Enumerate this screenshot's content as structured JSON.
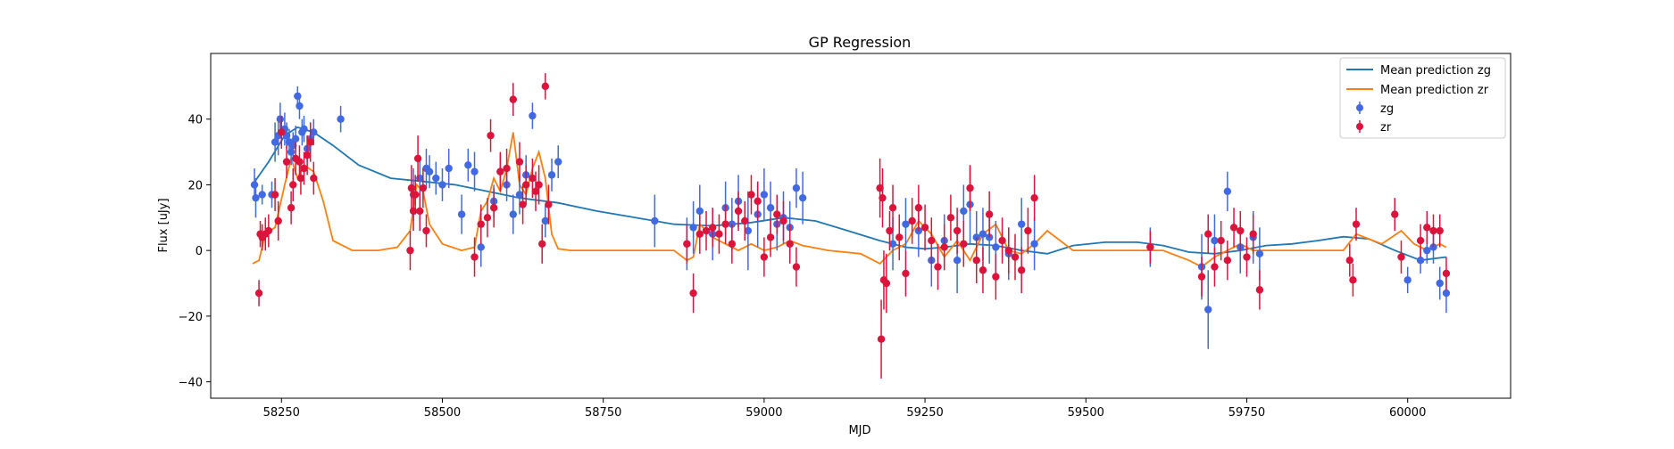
{
  "colors": {
    "zg_line": "#1f77b4",
    "zr_line": "#ff7f0e",
    "zg_points": "#4169e1",
    "zr_points": "#dc143c",
    "axes": "#000000"
  },
  "chart_data": {
    "type": "scatter",
    "title": "GP Regression",
    "xlabel": "MJD",
    "ylabel": "Flux [uJy]",
    "xlim": [
      58140,
      60160
    ],
    "ylim": [
      -45,
      60
    ],
    "x_ticks": [
      58250,
      58500,
      58750,
      59000,
      59250,
      59500,
      59750,
      60000
    ],
    "y_ticks": [
      -40,
      -20,
      0,
      20,
      40
    ],
    "grid": false,
    "legend_position": "top-right",
    "legend": [
      "Mean prediction zg",
      "Mean prediction zr",
      "zg",
      "zr"
    ],
    "series": [
      {
        "name": "Mean prediction zg",
        "kind": "line",
        "x": [
          58205,
          58230,
          58255,
          58275,
          58300,
          58330,
          58370,
          58420,
          58470,
          58520,
          58570,
          58620,
          58680,
          58740,
          58800,
          58860,
          58920,
          58980,
          59030,
          59080,
          59130,
          59180,
          59220,
          59250,
          59280,
          59320,
          59360,
          59400,
          59440,
          59480,
          59530,
          59580,
          59620,
          59660,
          59700,
          59740,
          59780,
          59820,
          59860,
          59900,
          59940,
          59980,
          60020,
          60060
        ],
        "y": [
          20,
          27,
          35,
          37.5,
          36,
          32,
          26,
          22,
          21,
          20,
          18,
          16,
          14.5,
          12,
          10,
          8,
          7.5,
          8.5,
          10,
          9,
          6,
          3,
          1,
          0.5,
          1,
          2,
          1.5,
          0,
          -1,
          1.5,
          2.5,
          2.5,
          1.5,
          -0.5,
          -1,
          0,
          1.5,
          2,
          3,
          4.2,
          3.5,
          0,
          -3,
          -2
        ]
      },
      {
        "name": "Mean prediction zr",
        "kind": "line",
        "x": [
          58205,
          58215,
          58225,
          58240,
          58255,
          58265,
          58275,
          58285,
          58300,
          58315,
          58330,
          58360,
          58400,
          58430,
          58450,
          58460,
          58470,
          58480,
          58500,
          58530,
          58550,
          58560,
          58570,
          58580,
          58590,
          58600,
          58610,
          58620,
          58630,
          58640,
          58650,
          58660,
          58670,
          58680,
          58700,
          58740,
          58800,
          58860,
          58880,
          58890,
          58900,
          58920,
          58940,
          58960,
          58980,
          59000,
          59020,
          59040,
          59060,
          59100,
          59150,
          59180,
          59190,
          59200,
          59220,
          59240,
          59260,
          59280,
          59300,
          59320,
          59340,
          59360,
          59380,
          59400,
          59420,
          59440,
          59480,
          59560,
          59620,
          59660,
          59680,
          59700,
          59720,
          59740,
          59760,
          59800,
          59860,
          59900,
          59920,
          59960,
          59990,
          60010,
          60030,
          60050,
          60060
        ],
        "y": [
          -4,
          -3,
          5,
          7,
          20,
          28,
          22,
          26,
          24,
          15,
          3,
          0,
          0,
          1,
          6,
          20,
          18,
          8,
          2,
          0,
          1,
          12,
          15,
          22,
          18,
          25,
          36,
          20,
          17,
          25,
          30,
          22,
          5,
          0.5,
          0,
          0,
          0,
          0,
          -3,
          -2,
          8,
          4,
          2,
          0,
          2,
          0,
          1,
          3,
          1.5,
          0,
          -1,
          -4,
          -2,
          0,
          2,
          9,
          5,
          -2,
          3,
          -3,
          5,
          8,
          0,
          -1,
          2,
          6,
          0,
          0,
          0,
          -3,
          -5,
          -2,
          0,
          2,
          0,
          0,
          0,
          0,
          5,
          2,
          6,
          2,
          0,
          2,
          1
        ]
      },
      {
        "name": "zg",
        "kind": "errorbar",
        "x": [
          58208,
          58210,
          58220,
          58235,
          58240,
          58245,
          58248,
          58255,
          58258,
          58262,
          58265,
          58268,
          58272,
          58275,
          58278,
          58282,
          58285,
          58290,
          58295,
          58300,
          58342,
          58455,
          58465,
          58475,
          58480,
          58490,
          58500,
          58510,
          58530,
          58540,
          58550,
          58560,
          58580,
          58590,
          58600,
          58610,
          58620,
          58630,
          58640,
          58660,
          58670,
          58680,
          58830,
          58880,
          58890,
          58900,
          58920,
          58940,
          58950,
          58960,
          58975,
          58990,
          59000,
          59010,
          59020,
          59030,
          59040,
          59050,
          59060,
          59200,
          59220,
          59240,
          59260,
          59280,
          59300,
          59310,
          59320,
          59330,
          59340,
          59350,
          59360,
          59380,
          59400,
          59420,
          59600,
          59680,
          59690,
          59700,
          59720,
          59740,
          59760,
          59770,
          60000,
          60020,
          60030,
          60040,
          60050,
          60060
        ],
        "y": [
          20,
          16,
          17,
          17,
          33,
          35,
          40,
          37,
          35,
          33,
          30,
          32,
          34,
          47,
          44,
          36,
          37,
          31,
          34,
          36,
          40,
          17,
          22,
          25,
          24,
          22,
          20,
          25,
          11,
          26,
          24,
          1,
          15,
          24,
          20,
          11,
          17,
          23,
          41,
          9,
          23,
          27,
          9,
          2,
          7,
          12,
          5,
          13,
          8,
          15,
          6,
          11,
          17,
          13,
          8,
          10,
          7,
          19,
          16,
          2,
          8,
          6,
          -3,
          3,
          -3,
          12,
          14,
          4,
          5,
          4,
          1,
          -1,
          8,
          2,
          1,
          -5,
          -18,
          3,
          18,
          1,
          4,
          -1,
          -9,
          -3,
          0,
          1,
          -10,
          -13
        ],
        "err": [
          5,
          6,
          3,
          4,
          6,
          6,
          5,
          5,
          4,
          4,
          4,
          4,
          4,
          3,
          4,
          4,
          4,
          4,
          5,
          4,
          4,
          8,
          7,
          6,
          5,
          5,
          5,
          6,
          6,
          5,
          6,
          6,
          5,
          5,
          5,
          6,
          6,
          6,
          4,
          5,
          5,
          5,
          8,
          8,
          8,
          8,
          8,
          8,
          8,
          8,
          12,
          10,
          8,
          8,
          8,
          8,
          8,
          6,
          8,
          8,
          8,
          8,
          8,
          8,
          10,
          8,
          12,
          8,
          8,
          8,
          8,
          8,
          8,
          8,
          6,
          10,
          12,
          8,
          6,
          8,
          8,
          8,
          4,
          4,
          4,
          5,
          5,
          6
        ]
      },
      {
        "name": "zr",
        "kind": "errorbar",
        "x": [
          58215,
          58217,
          58220,
          58225,
          58230,
          58240,
          58245,
          58250,
          58258,
          58265,
          58268,
          58272,
          58278,
          58280,
          58285,
          58290,
          58295,
          58300,
          58450,
          58452,
          58455,
          58458,
          58462,
          58465,
          58470,
          58475,
          58550,
          58560,
          58570,
          58575,
          58580,
          58590,
          58600,
          58610,
          58620,
          58625,
          58630,
          58640,
          58645,
          58650,
          58655,
          58660,
          58665,
          58880,
          58890,
          58900,
          58910,
          58920,
          58930,
          58940,
          58950,
          58960,
          58970,
          58980,
          58990,
          59000,
          59010,
          59020,
          59030,
          59040,
          59050,
          59180,
          59182,
          59184,
          59186,
          59190,
          59195,
          59200,
          59210,
          59220,
          59230,
          59240,
          59250,
          59260,
          59270,
          59280,
          59290,
          59300,
          59310,
          59320,
          59330,
          59340,
          59350,
          59360,
          59370,
          59380,
          59390,
          59400,
          59410,
          59420,
          59600,
          59680,
          59690,
          59700,
          59710,
          59720,
          59730,
          59740,
          59750,
          59760,
          59770,
          59910,
          59915,
          59920,
          59980,
          59990,
          60020,
          60030,
          60040,
          60050,
          60060
        ],
        "y": [
          -13,
          5,
          4,
          5,
          6,
          17,
          9,
          36,
          27,
          13,
          20,
          28,
          27,
          22,
          25,
          29,
          33,
          22,
          0,
          19,
          12,
          17,
          28,
          12,
          19,
          6,
          -2,
          8,
          10,
          35,
          13,
          24,
          25,
          46,
          27,
          14,
          20,
          22,
          18,
          20,
          2,
          50,
          14,
          2,
          -13,
          5,
          6,
          7,
          5,
          8,
          2,
          12,
          9,
          17,
          15,
          -2,
          4,
          11,
          9,
          2,
          -5,
          19,
          -27,
          16,
          -9,
          -10,
          6,
          13,
          4,
          -7,
          9,
          13,
          7,
          3,
          -5,
          1,
          10,
          6,
          2,
          19,
          -3,
          -6,
          11,
          -8,
          3,
          0,
          -2,
          -6,
          6,
          16,
          1,
          -8,
          5,
          -5,
          3,
          -3,
          7,
          6,
          -2,
          5,
          -12,
          -3,
          -9,
          8,
          11,
          -2,
          3,
          7,
          6,
          6,
          -7
        ],
        "err": [
          4,
          4,
          4,
          5,
          5,
          5,
          6,
          5,
          5,
          5,
          5,
          5,
          5,
          5,
          5,
          6,
          6,
          5,
          6,
          7,
          6,
          6,
          7,
          6,
          6,
          5,
          6,
          6,
          6,
          5,
          6,
          6,
          6,
          5,
          6,
          6,
          6,
          6,
          6,
          6,
          6,
          4,
          6,
          6,
          6,
          6,
          6,
          6,
          6,
          6,
          6,
          6,
          6,
          6,
          6,
          6,
          6,
          6,
          6,
          6,
          6,
          9,
          12,
          9,
          9,
          9,
          6,
          7,
          7,
          7,
          7,
          7,
          7,
          7,
          7,
          7,
          7,
          7,
          7,
          7,
          7,
          7,
          7,
          7,
          7,
          7,
          7,
          7,
          7,
          7,
          5,
          6,
          6,
          6,
          6,
          6,
          6,
          6,
          6,
          6,
          6,
          5,
          5,
          5,
          5,
          5,
          5,
          5,
          5,
          5,
          5
        ]
      }
    ]
  }
}
